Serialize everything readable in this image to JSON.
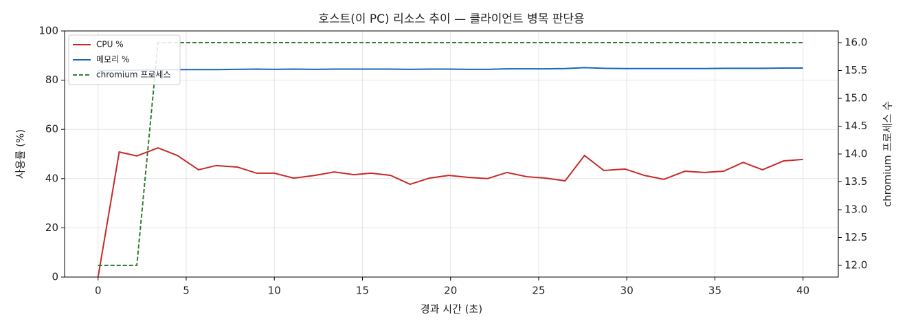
{
  "chart_data": {
    "type": "line",
    "title": "호스트(이 PC) 리소스 추이 — 클라이언트 병목 판단용",
    "xlabel": "경과 시간 (초)",
    "ylabel": "사용률 (%)",
    "y2label": "chromium 프로세스 수",
    "x": [
      0,
      1.2,
      2.2,
      3.4,
      4.5,
      5.7,
      6.7,
      7.9,
      9.0,
      10.0,
      11.1,
      12.3,
      13.4,
      14.5,
      15.5,
      16.6,
      17.7,
      18.8,
      19.9,
      21.0,
      22.1,
      23.2,
      24.3,
      25.4,
      26.5,
      27.6,
      28.7,
      29.9,
      31.0,
      32.1,
      33.3,
      34.4,
      35.5,
      36.6,
      37.7,
      38.9,
      40.0
    ],
    "series": [
      {
        "name": "CPU %",
        "color": "#c62828",
        "linestyle": "solid",
        "values": [
          0,
          50.8,
          49.2,
          52.5,
          49.4,
          43.6,
          45.3,
          44.7,
          42.2,
          42.2,
          40.2,
          41.3,
          42.7,
          41.6,
          42.2,
          41.3,
          37.7,
          40.2,
          41.3,
          40.5,
          40.0,
          42.5,
          40.8,
          40.2,
          39.1,
          49.4,
          43.3,
          43.9,
          41.3,
          39.7,
          43.0,
          42.5,
          43.0,
          46.6,
          43.6,
          47.2,
          47.8
        ]
      },
      {
        "name": "메모리 %",
        "color": "#1565c0",
        "linestyle": "solid",
        "values": [
          83.8,
          84.0,
          84.1,
          84.2,
          84.3,
          84.3,
          84.3,
          84.4,
          84.5,
          84.4,
          84.5,
          84.4,
          84.5,
          84.5,
          84.5,
          84.5,
          84.4,
          84.5,
          84.5,
          84.4,
          84.4,
          84.6,
          84.6,
          84.6,
          84.7,
          85.1,
          84.8,
          84.7,
          84.7,
          84.7,
          84.7,
          84.7,
          84.8,
          84.8,
          84.8,
          84.9,
          84.9
        ]
      },
      {
        "name": "chromium 프로세스",
        "color": "#2e7d32",
        "linestyle": "dashed",
        "axis": "y2",
        "values": [
          12,
          12,
          12,
          16,
          16,
          16,
          16,
          16,
          16,
          16,
          16,
          16,
          16,
          16,
          16,
          16,
          16,
          16,
          16,
          16,
          16,
          16,
          16,
          16,
          16,
          16,
          16,
          16,
          16,
          16,
          16,
          16,
          16,
          16,
          16,
          16,
          16
        ]
      }
    ],
    "xlim": [
      -1.9,
      42
    ],
    "xticks": [
      0,
      5,
      10,
      15,
      20,
      25,
      30,
      35,
      40
    ],
    "ylim": [
      0,
      100
    ],
    "yticks": [
      0,
      20,
      40,
      60,
      80,
      100
    ],
    "y2lim": [
      11.79,
      16.21
    ],
    "y2ticks": [
      {
        "value": 12,
        "label": "12.0"
      },
      {
        "value": 12.5,
        "label": "12.5"
      },
      {
        "value": 13,
        "label": "13.0"
      },
      {
        "value": 13.5,
        "label": "13.5"
      },
      {
        "value": 14,
        "label": "14.0"
      },
      {
        "value": 14.5,
        "label": "14.5"
      },
      {
        "value": 15,
        "label": "15.0"
      },
      {
        "value": 15.5,
        "label": "15.5"
      },
      {
        "value": 16,
        "label": "16.0"
      }
    ],
    "grid": true,
    "legend": "upper left"
  }
}
